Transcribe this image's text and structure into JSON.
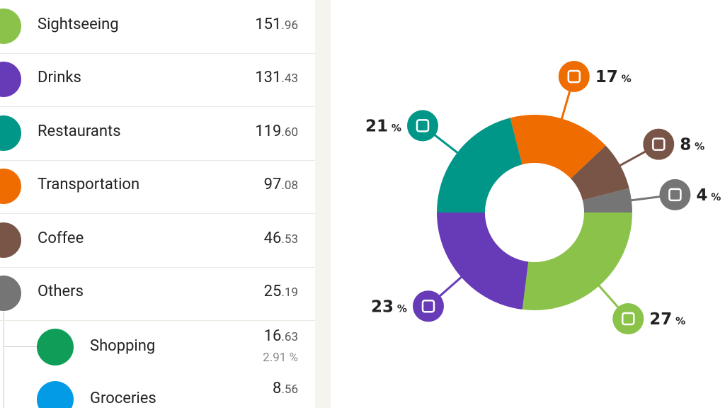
{
  "list": {
    "items": [
      {
        "name": "Sightseeing",
        "amount": "151.96",
        "color": "#8bc34a"
      },
      {
        "name": "Drinks",
        "amount": "131.43",
        "color": "#673ab7"
      },
      {
        "name": "Restaurants",
        "amount": "119.60",
        "color": "#009688"
      },
      {
        "name": "Transportation",
        "amount": "97.08",
        "color": "#ef6c00"
      },
      {
        "name": "Coffee",
        "amount": "46.53",
        "color": "#795548"
      },
      {
        "name": "Others",
        "amount": "25.19",
        "color": "#757575"
      }
    ],
    "others_items": [
      {
        "name": "Shopping",
        "amount": "16.63",
        "percent": "2.91 %",
        "color": "#0f9d58"
      },
      {
        "name": "Groceries",
        "amount": "8.56",
        "color": "#039be5"
      }
    ]
  },
  "chart_data": {
    "type": "pie",
    "values": [
      21,
      17,
      8,
      4,
      27,
      23
    ],
    "value_labels": [
      "21 %",
      "17 %",
      "8 %",
      "4 %",
      "27 %",
      "23 %"
    ],
    "colors": [
      "#009688",
      "#ef6c00",
      "#795548",
      "#757575",
      "#8bc34a",
      "#673ab7"
    ]
  }
}
